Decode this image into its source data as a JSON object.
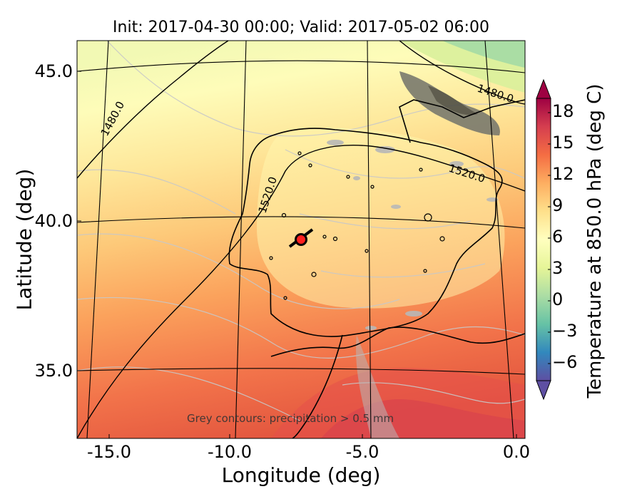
{
  "title": "Init: 2017-04-30 00:00; Valid: 2017-05-02 06:00",
  "xaxis": {
    "label": "Longitude (deg)",
    "ticks": [
      "-15.0",
      "-10.0",
      "-5.0",
      "0.0"
    ],
    "range": [
      -16,
      0.3
    ]
  },
  "yaxis": {
    "label": "Latitude (deg)",
    "ticks": [
      "35.0",
      "40.0",
      "45.0"
    ],
    "range": [
      32.8,
      46.0
    ]
  },
  "colorbar": {
    "label": "Temperature at 850.0 hPa (deg C)",
    "ticks": [
      "−6",
      "−3",
      "0",
      "3",
      "6",
      "9",
      "12",
      "15",
      "18"
    ],
    "range": [
      -8,
      20
    ],
    "colormap": "Spectral_r",
    "extend": "both"
  },
  "contour_labels": [
    "1480.0",
    "1480.0",
    "1520.0",
    "1520.0"
  ],
  "annotation": "Grey contours: precipitation > 0.5 mm",
  "marker": {
    "lon": -7.6,
    "lat": 39.3,
    "color": "#ff2020"
  },
  "colors": {
    "high": "#9e0142",
    "warm": "#f46d43",
    "mid": "#ffffbf",
    "cool": "#66c2a5",
    "low": "#5e4fa2"
  }
}
